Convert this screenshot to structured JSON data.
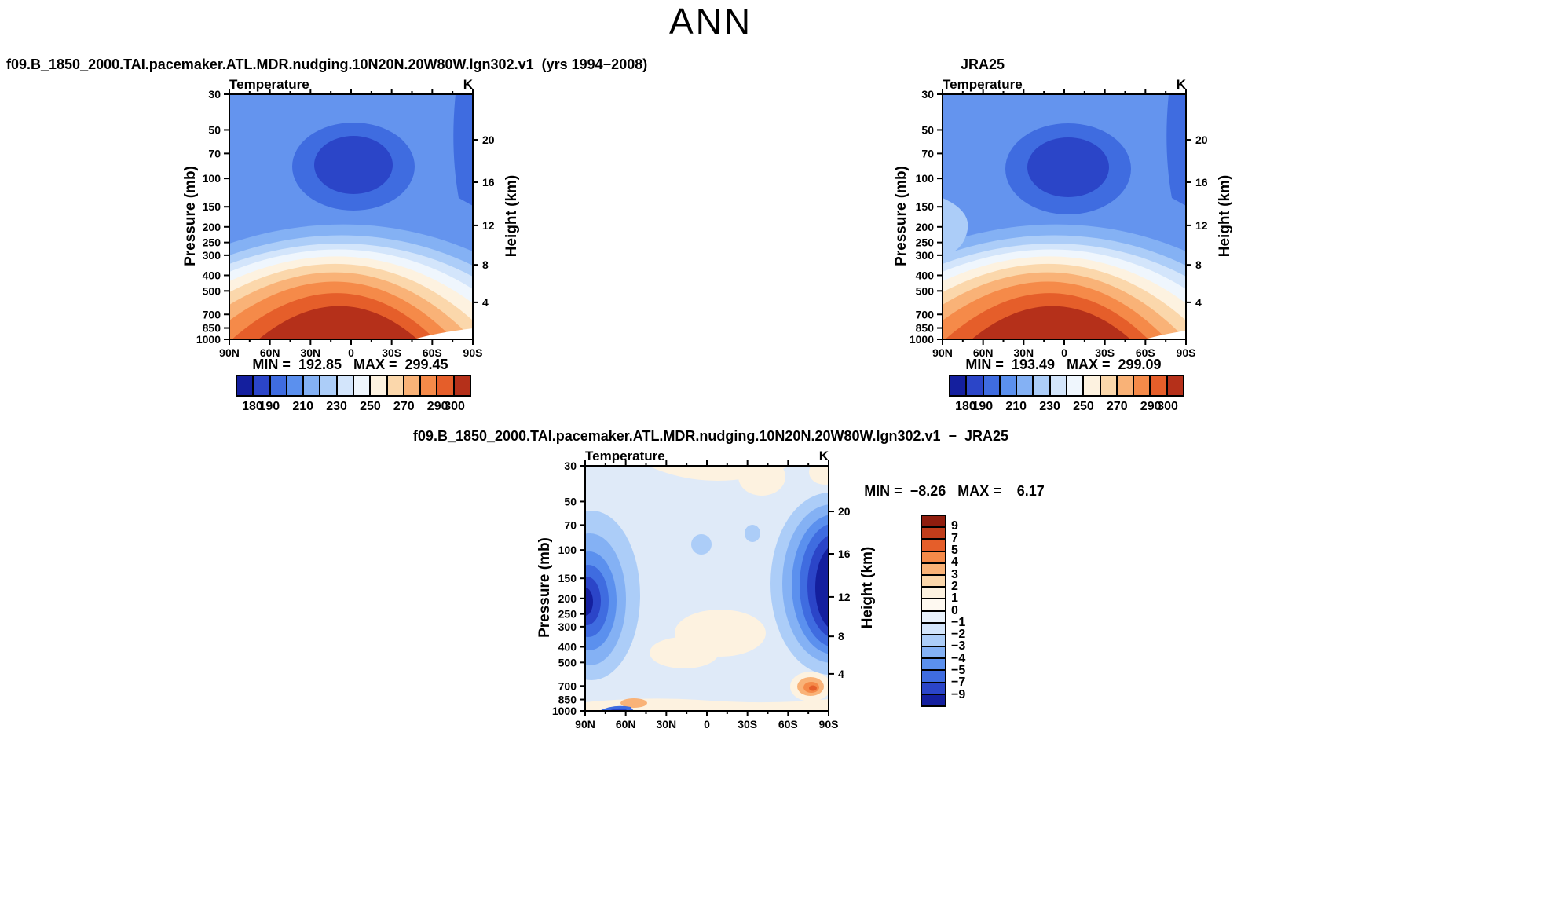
{
  "page_title": "ANN",
  "panels": [
    {
      "id": "model",
      "title": "f09.B_1850_2000.TAI.pacemaker.ATL.MDR.nudging.10N20N.20W80W.lgn302.v1  (yrs 1994−2008)",
      "plot_label": "Temperature",
      "units_label": "K",
      "pressure_label": "Pressure (mb)",
      "height_label": "Height (km)",
      "pressure_ticks": [
        "30",
        "50",
        "70",
        "100",
        "150",
        "200",
        "250",
        "300",
        "400",
        "500",
        "700",
        "850",
        "1000"
      ],
      "height_ticks": [
        {
          "t": "20",
          "f": 0.186
        },
        {
          "t": "16",
          "f": 0.359
        },
        {
          "t": "12",
          "f": 0.535
        },
        {
          "t": "8",
          "f": 0.696
        },
        {
          "t": "4",
          "f": 0.849
        }
      ],
      "lat_labels": [
        "90N",
        "60N",
        "30N",
        "0",
        "30S",
        "60S",
        "90S"
      ],
      "minmax": "MIN =  192.85   MAX =  299.45",
      "colorbar": {
        "orientation": "horizontal",
        "cells": [
          "#141f9e",
          "#2b45c8",
          "#3f6ce0",
          "#5b90ee",
          "#84b1f4",
          "#accdf8",
          "#d3e5fb",
          "#eff6fd",
          "#fdf2e0",
          "#fbd7ab",
          "#f9b277",
          "#f58a49",
          "#e55e2a",
          "#b5301a"
        ],
        "labels": [
          "180",
          "190",
          "210",
          "230",
          "250",
          "270",
          "290",
          "300"
        ],
        "boundaries": [
          1,
          2,
          4,
          6,
          8,
          10,
          12,
          13
        ]
      }
    },
    {
      "id": "obs",
      "title": "JRA25",
      "plot_label": "Temperature",
      "units_label": "K",
      "pressure_label": "Pressure (mb)",
      "height_label": "Height (km)",
      "pressure_ticks": [
        "30",
        "50",
        "70",
        "100",
        "150",
        "200",
        "250",
        "300",
        "400",
        "500",
        "700",
        "850",
        "1000"
      ],
      "height_ticks": [
        {
          "t": "20",
          "f": 0.186
        },
        {
          "t": "16",
          "f": 0.359
        },
        {
          "t": "12",
          "f": 0.535
        },
        {
          "t": "8",
          "f": 0.696
        },
        {
          "t": "4",
          "f": 0.849
        }
      ],
      "lat_labels": [
        "90N",
        "60N",
        "30N",
        "0",
        "30S",
        "60S",
        "90S"
      ],
      "minmax": "MIN =  193.49   MAX =  299.09",
      "colorbar": {
        "orientation": "horizontal",
        "cells": [
          "#141f9e",
          "#2b45c8",
          "#3f6ce0",
          "#5b90ee",
          "#84b1f4",
          "#accdf8",
          "#d3e5fb",
          "#eff6fd",
          "#fdf2e0",
          "#fbd7ab",
          "#f9b277",
          "#f58a49",
          "#e55e2a",
          "#b5301a"
        ],
        "labels": [
          "180",
          "190",
          "210",
          "230",
          "250",
          "270",
          "290",
          "300"
        ],
        "boundaries": [
          1,
          2,
          4,
          6,
          8,
          10,
          12,
          13
        ]
      }
    },
    {
      "id": "diff",
      "title": "f09.B_1850_2000.TAI.pacemaker.ATL.MDR.nudging.10N20N.20W80W.lgn302.v1  −  JRA25",
      "plot_label": "Temperature",
      "units_label": "K",
      "pressure_label": "Pressure (mb)",
      "height_label": "Height (km)",
      "pressure_ticks": [
        "30",
        "50",
        "70",
        "100",
        "150",
        "200",
        "250",
        "300",
        "400",
        "500",
        "700",
        "850",
        "1000"
      ],
      "height_ticks": [
        {
          "t": "20",
          "f": 0.186
        },
        {
          "t": "16",
          "f": 0.359
        },
        {
          "t": "12",
          "f": 0.535
        },
        {
          "t": "8",
          "f": 0.696
        },
        {
          "t": "4",
          "f": 0.849
        }
      ],
      "lat_labels": [
        "90N",
        "60N",
        "30N",
        "0",
        "30S",
        "60S",
        "90S"
      ],
      "minmax": "MIN =  −8.26   MAX =    6.17",
      "colorbar": {
        "orientation": "vertical",
        "cells": [
          "#8f1d0e",
          "#c03d1b",
          "#e55e2a",
          "#f58a49",
          "#f9b277",
          "#fbd7ab",
          "#fdf2e0",
          "#fef9f1",
          "#e8f1fb",
          "#d3e5fb",
          "#accdf8",
          "#84b1f4",
          "#5b90ee",
          "#3f6ce0",
          "#2b45c8",
          "#141f9e"
        ],
        "labels": [
          "9",
          "7",
          "5",
          "4",
          "3",
          "2",
          "1",
          "0",
          "−1",
          "−2",
          "−3",
          "−4",
          "−5",
          "−7",
          "−9"
        ],
        "boundaries": [
          1,
          2,
          3,
          4,
          5,
          6,
          7,
          8,
          9,
          10,
          11,
          12,
          13,
          14,
          15
        ]
      }
    }
  ],
  "chart_data": [
    {
      "type": "heatmap",
      "panel": "model",
      "season": "ANN",
      "title": "f09.B_1850_2000.TAI.pacemaker.ATL.MDR.nudging.10N20N.20W80W.lgn302.v1 (yrs 1994−2008)",
      "variable": "Temperature",
      "units": "K",
      "x_axis": {
        "label": "Latitude",
        "tick_labels": [
          "90N",
          "60N",
          "30N",
          "0",
          "30S",
          "60S",
          "90S"
        ]
      },
      "y_axis_left": {
        "label": "Pressure (mb)",
        "scale": "log",
        "ticks": [
          30,
          50,
          70,
          100,
          150,
          200,
          250,
          300,
          400,
          500,
          700,
          850,
          1000
        ]
      },
      "y_axis_right": {
        "label": "Height (km)",
        "ticks": [
          20,
          16,
          12,
          8,
          4
        ]
      },
      "stats": {
        "min": 192.85,
        "max": 299.45
      },
      "colorbar": {
        "orientation": "horizontal",
        "tick_labels": [
          180,
          190,
          210,
          230,
          250,
          270,
          290,
          300
        ],
        "n_cells": 14,
        "range": [
          180,
          300
        ]
      }
    },
    {
      "type": "heatmap",
      "panel": "observation",
      "season": "ANN",
      "title": "JRA25",
      "variable": "Temperature",
      "units": "K",
      "x_axis": {
        "label": "Latitude",
        "tick_labels": [
          "90N",
          "60N",
          "30N",
          "0",
          "30S",
          "60S",
          "90S"
        ]
      },
      "y_axis_left": {
        "label": "Pressure (mb)",
        "scale": "log",
        "ticks": [
          30,
          50,
          70,
          100,
          150,
          200,
          250,
          300,
          400,
          500,
          700,
          850,
          1000
        ]
      },
      "y_axis_right": {
        "label": "Height (km)",
        "ticks": [
          20,
          16,
          12,
          8,
          4
        ]
      },
      "stats": {
        "min": 193.49,
        "max": 299.09
      },
      "colorbar": {
        "orientation": "horizontal",
        "tick_labels": [
          180,
          190,
          210,
          230,
          250,
          270,
          290,
          300
        ],
        "n_cells": 14,
        "range": [
          180,
          300
        ]
      }
    },
    {
      "type": "heatmap",
      "panel": "difference",
      "season": "ANN",
      "title": "f09.B_1850_2000.TAI.pacemaker.ATL.MDR.nudging.10N20N.20W80W.lgn302.v1 − JRA25",
      "variable": "Temperature difference",
      "units": "K",
      "x_axis": {
        "label": "Latitude",
        "tick_labels": [
          "90N",
          "60N",
          "30N",
          "0",
          "30S",
          "60S",
          "90S"
        ]
      },
      "y_axis_left": {
        "label": "Pressure (mb)",
        "scale": "log",
        "ticks": [
          30,
          50,
          70,
          100,
          150,
          200,
          250,
          300,
          400,
          500,
          700,
          850,
          1000
        ]
      },
      "y_axis_right": {
        "label": "Height (km)",
        "ticks": [
          20,
          16,
          12,
          8,
          4
        ]
      },
      "stats": {
        "min": -8.26,
        "max": 6.17
      },
      "colorbar": {
        "orientation": "vertical",
        "tick_labels": [
          9,
          7,
          5,
          4,
          3,
          2,
          1,
          0,
          -1,
          -2,
          -3,
          -4,
          -5,
          -7,
          -9
        ],
        "n_cells": 16,
        "range": [
          -9,
          9
        ]
      }
    }
  ]
}
